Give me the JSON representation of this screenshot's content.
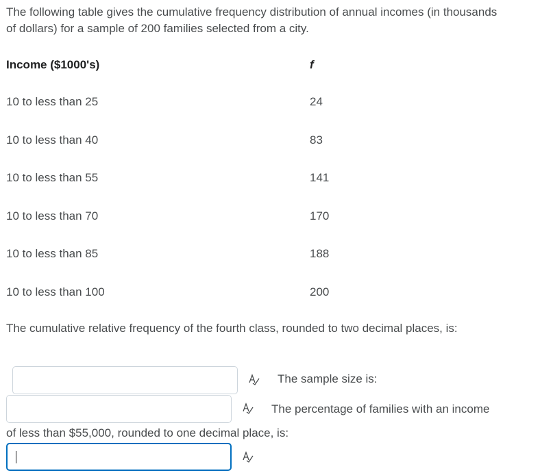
{
  "intro": "The following table gives the cumulative frequency distribution of annual incomes (in thousands of dollars) for a sample of 200 families selected from a city.",
  "table": {
    "header": [
      "Income ($1000's)",
      "f"
    ],
    "rows": [
      [
        "10 to less than 25",
        24
      ],
      [
        "10 to less than 40",
        83
      ],
      [
        "10 to less than 55",
        141
      ],
      [
        "10 to less than 70",
        170
      ],
      [
        "10 to less than 85",
        188
      ],
      [
        "10 to less than 100",
        200
      ]
    ]
  },
  "question": "The cumulative relative frequency of the fourth class, rounded to two decimal places, is:",
  "prompts": [
    "The sample size is:",
    "The percentage of families with an income of less than $55,000, rounded to one decimal place, is:"
  ]
}
